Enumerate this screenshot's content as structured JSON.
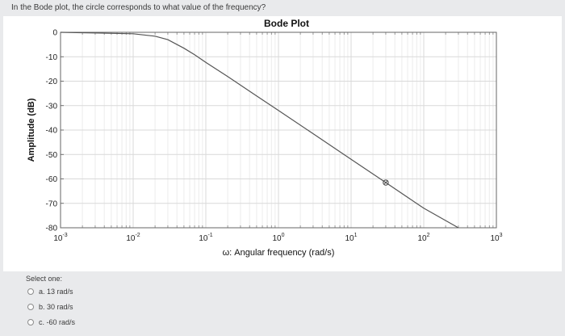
{
  "question": {
    "text": "In the Bode plot, the circle corresponds to what value of the frequency?"
  },
  "chart_data": {
    "type": "line",
    "title": "Bode Plot",
    "xlabel": "ω: Angular frequency (rad/s)",
    "ylabel": "Amplitude (dB)",
    "x_scale": "log",
    "xlim": [
      0.001,
      1000
    ],
    "ylim": [
      -80,
      0
    ],
    "x_ticks": [
      {
        "base": "10",
        "exp": "-3"
      },
      {
        "base": "10",
        "exp": "-2"
      },
      {
        "base": "10",
        "exp": "-1"
      },
      {
        "base": "10",
        "exp": "0"
      },
      {
        "base": "10",
        "exp": "1"
      },
      {
        "base": "10",
        "exp": "2"
      },
      {
        "base": "10",
        "exp": "3"
      }
    ],
    "y_ticks": [
      "0",
      "-10",
      "-20",
      "-30",
      "-40",
      "-50",
      "-60",
      "-70",
      "-80"
    ],
    "grid": true,
    "series": [
      {
        "color": "#555555",
        "x": [
          0.001,
          0.01,
          0.02,
          0.03,
          0.05,
          0.07,
          0.1,
          0.2,
          0.5,
          1,
          3,
          10,
          30,
          100,
          300
        ],
        "y": [
          0,
          -0.6,
          -1.6,
          -3.0,
          -6.5,
          -9.2,
          -12.3,
          -18.1,
          -26.0,
          -32.0,
          -41.5,
          -52.0,
          -61.5,
          -72.0,
          -81.5
        ]
      }
    ],
    "marker": {
      "x": 30,
      "y": -61.5,
      "shape": "circle"
    }
  },
  "answers": {
    "prompt": "Select one:",
    "options": [
      {
        "label": "a. 13 rad/s"
      },
      {
        "label": "b. 30 rad/s"
      },
      {
        "label": "c. -60 rad/s"
      }
    ]
  }
}
